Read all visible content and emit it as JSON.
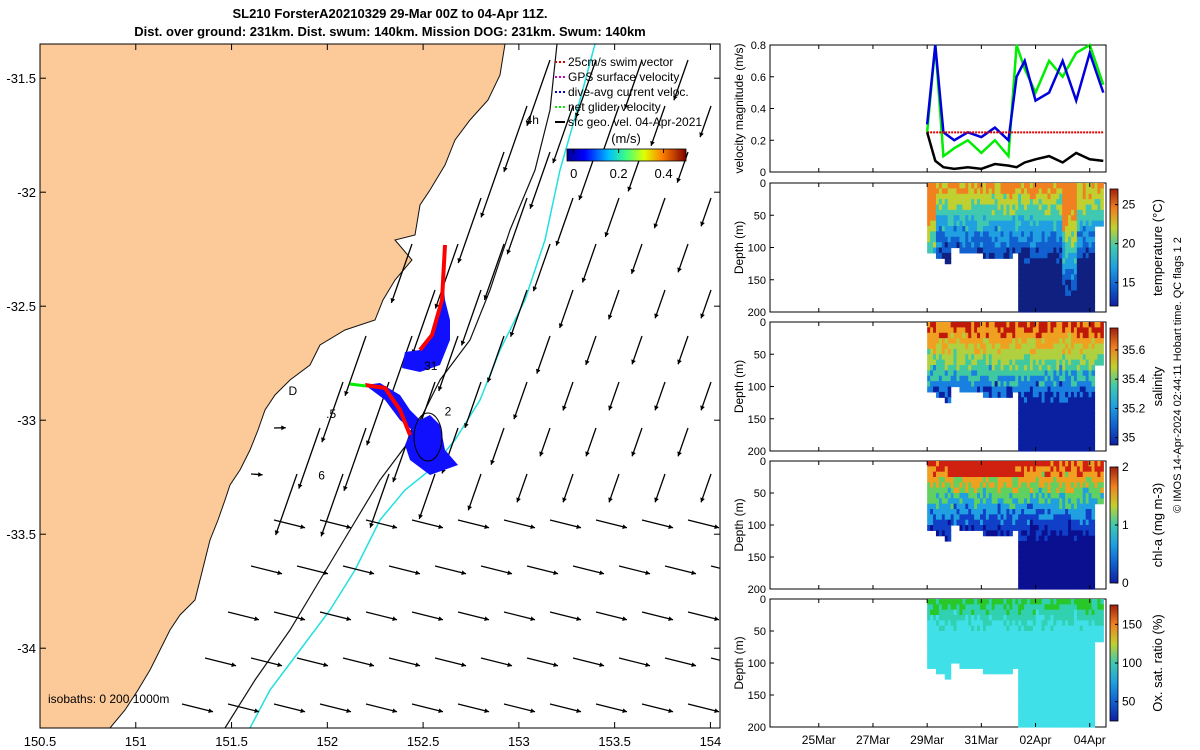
{
  "title_line1": "SL210 ForsterA20210329 29-Mar 00Z to 04-Apr 11Z.",
  "title_line2": "Dist. over ground: 231km. Dist. swum: 140km. Mission DOG: 231km. Swum: 140km",
  "side_note": "© IMOS 14-Apr-2024 02:44:11 Hobart time. QC flags 1  2",
  "colors": {
    "land": "#fcc998",
    "coastline": "#111111",
    "isobath_200": "#111111",
    "isobath_1000": "#22e0e0",
    "glider_track": "#1010ff",
    "glider_red": "#ff0000",
    "vector": "#000000",
    "series_blue": "#0000dd",
    "series_green": "#00ee00",
    "series_red": "#dd0000",
    "series_black": "#000000"
  },
  "map": {
    "x_ticks": [
      "150.5",
      "151",
      "151.5",
      "152",
      "152.5",
      "153",
      "153.5",
      "154"
    ],
    "x_tick_values": [
      150.5,
      151,
      151.5,
      152,
      152.5,
      153,
      153.5,
      154
    ],
    "y_ticks": [
      "-31.5",
      "-32",
      "-32.5",
      "-33",
      "-33.5",
      "-34"
    ],
    "y_tick_values": [
      -31.5,
      -32,
      -32.5,
      -33,
      -33.5,
      -34
    ],
    "xlim": [
      150.5,
      154.05
    ],
    "ylim": [
      -34.35,
      -31.35
    ],
    "legend": [
      {
        "label": "25cm/s swim vector",
        "color": "#dd0000",
        "style": "dash"
      },
      {
        "label": "GPS surface velocity",
        "color": "#cc00cc",
        "style": "dash"
      },
      {
        "label": "dive-avg current veloc.",
        "color": "#0000dd",
        "style": "dash"
      },
      {
        "label": "net glider velocity",
        "color": "#00ee00",
        "style": "dash"
      },
      {
        "label": "sfc geo. vel. 04-Apr-2021",
        "color": "#000000",
        "style": "solid"
      }
    ],
    "colorbar": {
      "label": "(m/s)",
      "ticks": [
        "0",
        "0.2",
        "0.4"
      ],
      "tick_values": [
        0,
        0.2,
        0.4
      ],
      "range": [
        -0.03,
        0.5
      ]
    },
    "isobath_label": "isobaths: 0   200  1000m",
    "day_labels": [
      {
        "text": "4h",
        "lon": 153.07,
        "lat": -31.7
      },
      {
        "text": "31",
        "lon": 152.54,
        "lat": -32.78
      },
      {
        "text": ".5",
        "lon": 152.02,
        "lat": -32.99
      },
      {
        "text": "2",
        "lon": 152.63,
        "lat": -32.98
      },
      {
        "text": "6",
        "lon": 151.97,
        "lat": -33.26
      },
      {
        "text": "D",
        "lon": 151.82,
        "lat": -32.89
      }
    ]
  },
  "timeseries": {
    "x_ticks": [
      "25Mar",
      "27Mar",
      "29Mar",
      "31Mar",
      "02Apr",
      "04Apr"
    ],
    "x_tick_days": [
      25,
      27,
      29,
      31,
      33,
      35
    ],
    "xlim_days": [
      23.2,
      35.6
    ],
    "velocity": {
      "ylabel": "velocity magnitude (m/s)",
      "y_ticks": [
        "0",
        "0.2",
        "0.4",
        "0.6",
        "0.8"
      ],
      "ylim": [
        0,
        0.8
      ]
    },
    "sections": [
      {
        "ylabel": "Depth (m)",
        "cbar_label": "temperature (°C)",
        "cbar_ticks": [
          "15",
          "20",
          "25"
        ],
        "cbar_tick_values": [
          15,
          20,
          25
        ],
        "cbar_range": [
          12,
          27
        ]
      },
      {
        "ylabel": "Depth (m)",
        "cbar_label": "salinity",
        "cbar_ticks": [
          "35",
          "35.2",
          "35.4",
          "35.6"
        ],
        "cbar_tick_values": [
          35,
          35.2,
          35.4,
          35.6
        ],
        "cbar_range": [
          34.95,
          35.75
        ]
      },
      {
        "ylabel": "Depth (m)",
        "cbar_label": "chl-a (mg m-3)",
        "cbar_ticks": [
          "0",
          "1",
          "2"
        ],
        "cbar_tick_values": [
          0,
          1,
          2
        ],
        "cbar_range": [
          0,
          2
        ]
      },
      {
        "ylabel": "Depth (m)",
        "cbar_label": "Ox. sat. ratio (%)",
        "cbar_ticks": [
          "50",
          "100",
          "150"
        ],
        "cbar_tick_values": [
          50,
          100,
          150
        ],
        "cbar_range": [
          25,
          175
        ]
      }
    ],
    "depth_ticks": [
      "0",
      "50",
      "100",
      "150",
      "200"
    ]
  },
  "chart_data": [
    {
      "type": "scatter",
      "subtype": "map",
      "xlim": [
        150.5,
        154.05
      ],
      "ylim": [
        -34.35,
        -31.35
      ],
      "series": [
        {
          "name": "dive-avg current veloc.",
          "points": [
            [
              152.4,
              -32.75
            ],
            [
              152.55,
              -32.6
            ],
            [
              152.6,
              -32.35
            ],
            [
              152.4,
              -32.8
            ],
            [
              152.5,
              -32.95
            ],
            [
              152.45,
              -33.1
            ],
            [
              152.6,
              -33.15
            ],
            [
              152.5,
              -33.25
            ],
            [
              152.35,
              -32.9
            ],
            [
              152.25,
              -32.87
            ]
          ]
        },
        {
          "name": "net glider velocity",
          "points": [
            [
              152.15,
              -32.87
            ],
            [
              152.2,
              -32.87
            ]
          ]
        }
      ]
    },
    {
      "type": "line",
      "ylabel": "velocity magnitude (m/s)",
      "ylim": [
        0,
        0.8
      ],
      "x_days": [
        29,
        29.3,
        29.6,
        30,
        30.5,
        31,
        31.5,
        32,
        32.3,
        32.6,
        33,
        33.5,
        34,
        34.5,
        35,
        35.5
      ],
      "series": [
        {
          "name": "dive-avg current veloc.",
          "values": [
            0.3,
            0.8,
            0.25,
            0.2,
            0.25,
            0.22,
            0.28,
            0.2,
            0.6,
            0.7,
            0.45,
            0.5,
            0.7,
            0.45,
            0.75,
            0.5
          ]
        },
        {
          "name": "net glider velocity",
          "values": [
            0.25,
            0.8,
            0.1,
            0.15,
            0.2,
            0.12,
            0.2,
            0.1,
            0.8,
            0.65,
            0.5,
            0.7,
            0.6,
            0.75,
            0.8,
            0.55
          ]
        },
        {
          "name": "25cm/s swim vector",
          "values": [
            0.25,
            0.25,
            0.25,
            0.25,
            0.25,
            0.25,
            0.25,
            0.25,
            0.25,
            0.25,
            0.25,
            0.25,
            0.25,
            0.25,
            0.25,
            0.25
          ]
        },
        {
          "name": "sfc geo. vel. 04-Apr-2021",
          "values": [
            0.25,
            0.07,
            0.03,
            0.02,
            0.03,
            0.02,
            0.05,
            0.04,
            0.03,
            0.06,
            0.08,
            0.1,
            0.06,
            0.12,
            0.08,
            0.07
          ]
        }
      ]
    },
    {
      "type": "heatmap",
      "ylabel": "Depth (m)",
      "cbar_label": "temperature (°C)",
      "ylim": [
        200,
        0
      ],
      "value_range": [
        12,
        27
      ],
      "x_days": [
        29,
        35.5
      ]
    },
    {
      "type": "heatmap",
      "ylabel": "Depth (m)",
      "cbar_label": "salinity",
      "ylim": [
        200,
        0
      ],
      "value_range": [
        34.95,
        35.75
      ],
      "x_days": [
        29,
        35.5
      ]
    },
    {
      "type": "heatmap",
      "ylabel": "Depth (m)",
      "cbar_label": "chl-a (mg m-3)",
      "ylim": [
        200,
        0
      ],
      "value_range": [
        0,
        2
      ],
      "x_days": [
        29,
        35.5
      ]
    },
    {
      "type": "heatmap",
      "ylabel": "Depth (m)",
      "cbar_label": "Ox. sat. ratio (%)",
      "ylim": [
        200,
        0
      ],
      "value_range": [
        25,
        175
      ],
      "x_days": [
        29,
        35.5
      ]
    }
  ]
}
